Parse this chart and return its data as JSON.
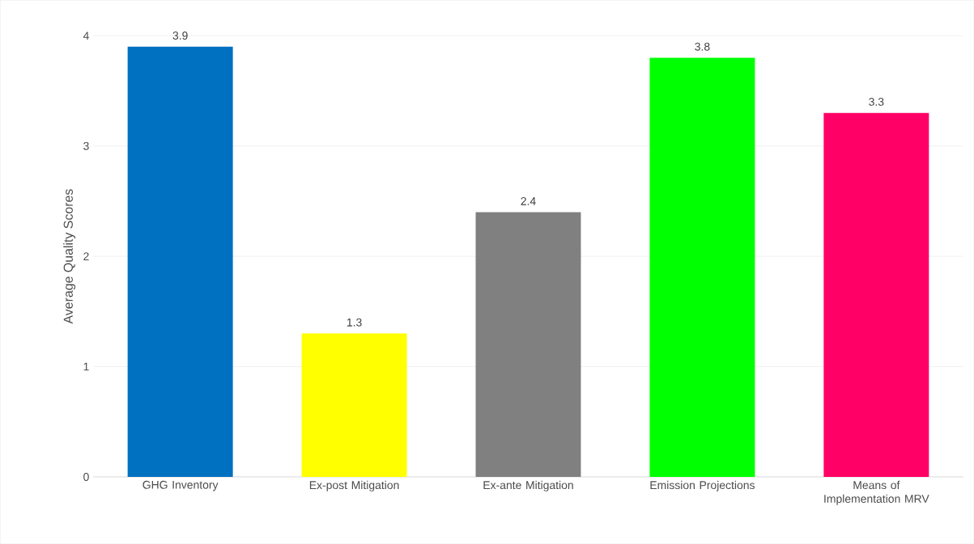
{
  "chart_data": {
    "type": "bar",
    "ylabel": "Average Quality Scores",
    "categories": [
      "GHG Inventory",
      "Ex-post Mitigation",
      "Ex-ante Mitigation",
      "Emission Projections",
      "Means of Implementation MRV"
    ],
    "values": [
      3.9,
      1.3,
      2.4,
      3.8,
      3.3
    ],
    "colors": [
      "#0070c0",
      "#ffff00",
      "#808080",
      "#00ff00",
      "#ff0066"
    ],
    "ylim": [
      0,
      4
    ],
    "yticks": [
      0,
      1,
      2,
      3,
      4
    ],
    "grid": "y",
    "data_labels": true
  }
}
